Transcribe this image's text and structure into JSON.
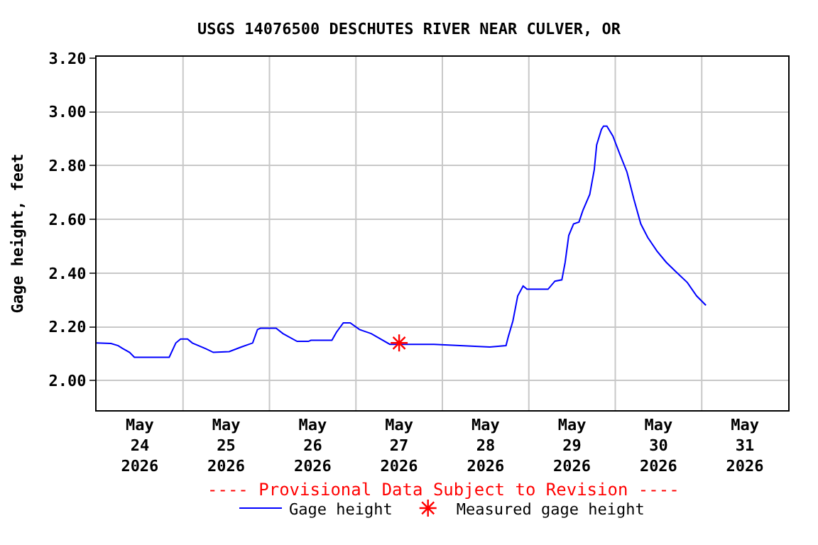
{
  "chart_data": {
    "type": "line",
    "title": "USGS 14076500 DESCHUTES RIVER NEAR CULVER, OR",
    "ylabel": "Gage height, feet",
    "series": [
      {
        "name": "Gage height",
        "color": "#0000ff",
        "marker": "none",
        "x": [
          "2026-05-24T00:00",
          "2026-05-24T04:00",
          "2026-05-24T06:00",
          "2026-05-24T07:10",
          "2026-05-24T09:10",
          "2026-05-24T10:30",
          "2026-05-24T20:10",
          "2026-05-24T22:00",
          "2026-05-24T23:20",
          "2026-05-25T01:15",
          "2026-05-25T02:35",
          "2026-05-25T06:25",
          "2026-05-25T08:25",
          "2026-05-25T12:50",
          "2026-05-25T16:10",
          "2026-05-25T19:20",
          "2026-05-25T20:40",
          "2026-05-25T21:30",
          "2026-05-26T01:50",
          "2026-05-26T03:45",
          "2026-05-26T07:40",
          "2026-05-26T10:50",
          "2026-05-26T11:30",
          "2026-05-26T17:20",
          "2026-05-26T18:35",
          "2026-05-26T20:30",
          "2026-05-26T22:25",
          "2026-05-27T01:00",
          "2026-05-27T04:15",
          "2026-05-27T09:25",
          "2026-05-27T12:00",
          "2026-05-27T21:40",
          "2026-05-28T13:10",
          "2026-05-28T17:40",
          "2026-05-28T18:20",
          "2026-05-28T19:35",
          "2026-05-28T20:55",
          "2026-05-28T22:25",
          "2026-05-28T23:30",
          "2026-05-29T05:20",
          "2026-05-29T07:15",
          "2026-05-29T09:10",
          "2026-05-29T10:05",
          "2026-05-29T11:05",
          "2026-05-29T12:25",
          "2026-05-29T13:55",
          "2026-05-29T15:00",
          "2026-05-29T16:55",
          "2026-05-29T18:10",
          "2026-05-29T18:50",
          "2026-05-29T20:10",
          "2026-05-29T20:45",
          "2026-05-29T21:40",
          "2026-05-29T23:20",
          "2026-05-30T01:15",
          "2026-05-30T03:15",
          "2026-05-30T05:10",
          "2026-05-30T07:05",
          "2026-05-30T09:00",
          "2026-05-30T11:35",
          "2026-05-30T14:10",
          "2026-05-30T16:45",
          "2026-05-30T20:00",
          "2026-05-30T22:35",
          "2026-05-31T01:10"
        ],
        "values": [
          2.14,
          2.138,
          2.13,
          2.12,
          2.105,
          2.087,
          2.087,
          2.14,
          2.155,
          2.155,
          2.14,
          2.118,
          2.105,
          2.108,
          2.125,
          2.14,
          2.19,
          2.195,
          2.195,
          2.175,
          2.146,
          2.146,
          2.15,
          2.15,
          2.18,
          2.215,
          2.215,
          2.19,
          2.175,
          2.135,
          2.135,
          2.135,
          2.125,
          2.13,
          2.165,
          2.222,
          2.315,
          2.352,
          2.34,
          2.34,
          2.37,
          2.375,
          2.44,
          2.54,
          2.583,
          2.59,
          2.633,
          2.693,
          2.785,
          2.877,
          2.935,
          2.947,
          2.947,
          2.91,
          2.843,
          2.776,
          2.675,
          2.583,
          2.533,
          2.482,
          2.44,
          2.406,
          2.365,
          2.315,
          2.28
        ]
      },
      {
        "name": "Measured gage height",
        "color": "#ff0000",
        "type": "scatter",
        "marker": "cross",
        "x": [
          "2026-05-27T12:00"
        ],
        "values": [
          2.14
        ]
      }
    ],
    "xlim": [
      "2026-05-24T00:00",
      "2026-06-01T00:00"
    ],
    "xticks": [
      {
        "value": "2026-05-24T12:00",
        "label": "May\n24\n2026"
      },
      {
        "value": "2026-05-25T00:00",
        "label": null
      },
      {
        "value": "2026-05-25T12:00",
        "label": "May\n25\n2026"
      },
      {
        "value": "2026-05-26T00:00",
        "label": null
      },
      {
        "value": "2026-05-26T12:00",
        "label": "May\n26\n2026"
      },
      {
        "value": "2026-05-27T00:00",
        "label": null
      },
      {
        "value": "2026-05-27T12:00",
        "label": "May\n27\n2026"
      },
      {
        "value": "2026-05-28T00:00",
        "label": null
      },
      {
        "value": "2026-05-28T12:00",
        "label": "May\n28\n2026"
      },
      {
        "value": "2026-05-29T00:00",
        "label": null
      },
      {
        "value": "2026-05-29T12:00",
        "label": "May\n29\n2026"
      },
      {
        "value": "2026-05-30T00:00",
        "label": null
      },
      {
        "value": "2026-05-30T12:00",
        "label": "May\n30\n2026"
      },
      {
        "value": "2026-05-31T00:00",
        "label": null
      },
      {
        "value": "2026-05-31T12:00",
        "label": "May\n31\n2026"
      }
    ],
    "ylim": [
      1.89,
      3.205
    ],
    "yticks": [
      {
        "value": 2.0,
        "label": "2.00"
      },
      {
        "value": 2.2,
        "label": "2.20"
      },
      {
        "value": 2.4,
        "label": "2.40"
      },
      {
        "value": 2.6,
        "label": "2.60"
      },
      {
        "value": 2.8,
        "label": "2.80"
      },
      {
        "value": 3.0,
        "label": "3.00"
      },
      {
        "value": 3.2,
        "label": "3.20"
      }
    ],
    "annotations": [
      "---- Provisional Data Subject to Revision ----"
    ],
    "grid": true,
    "legend": "bottom"
  }
}
